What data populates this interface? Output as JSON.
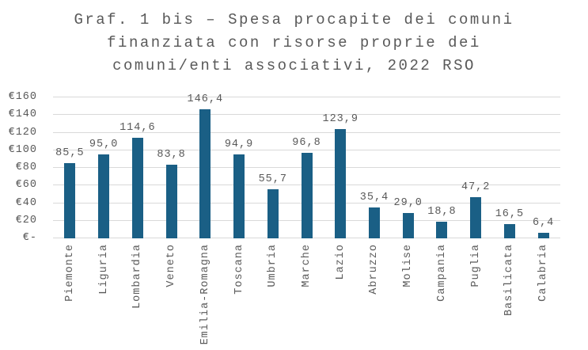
{
  "title_lines": [
    "Graf. 1 bis – Spesa procapite dei comuni",
    "finanziata con risorse proprie dei",
    "comuni/enti associativi, 2022 RSO"
  ],
  "colors": {
    "bar": "#1A5F85",
    "text": "#595959",
    "gridline": "#D9D9D9",
    "background": "#FFFFFF"
  },
  "chart_data": {
    "type": "bar",
    "title": "Graf. 1 bis – Spesa procapite dei comuni finanziata con risorse proprie dei comuni/enti associativi, 2022 RSO",
    "xlabel": "",
    "ylabel": "",
    "ylim": [
      0,
      160
    ],
    "grid": true,
    "legend": "none",
    "currency": "€",
    "categories": [
      "Piemonte",
      "Liguria",
      "Lombardia",
      "Veneto",
      "Emilia-Romagna",
      "Toscana",
      "Umbria",
      "Marche",
      "Lazio",
      "Abruzzo",
      "Molise",
      "Campania",
      "Puglia",
      "Basilicata",
      "Calabria"
    ],
    "values": [
      85.5,
      95.0,
      114.6,
      83.8,
      146.4,
      94.9,
      55.7,
      96.8,
      123.9,
      35.4,
      29.0,
      18.8,
      47.2,
      16.5,
      6.4
    ],
    "value_labels": [
      "85,5",
      "95,0",
      "114,6",
      "83,8",
      "146,4",
      "94,9",
      "55,7",
      "96,8",
      "123,9",
      "35,4",
      "29,0",
      "18,8",
      "47,2",
      "16,5",
      "6,4"
    ],
    "y_ticks": [
      {
        "value": 160,
        "label": "€160"
      },
      {
        "value": 140,
        "label": "€140"
      },
      {
        "value": 120,
        "label": "€120"
      },
      {
        "value": 100,
        "label": "€100"
      },
      {
        "value": 80,
        "label": "€80"
      },
      {
        "value": 60,
        "label": "€60"
      },
      {
        "value": 40,
        "label": "€40"
      },
      {
        "value": 20,
        "label": "€20"
      },
      {
        "value": 0,
        "label": "€-"
      }
    ]
  }
}
